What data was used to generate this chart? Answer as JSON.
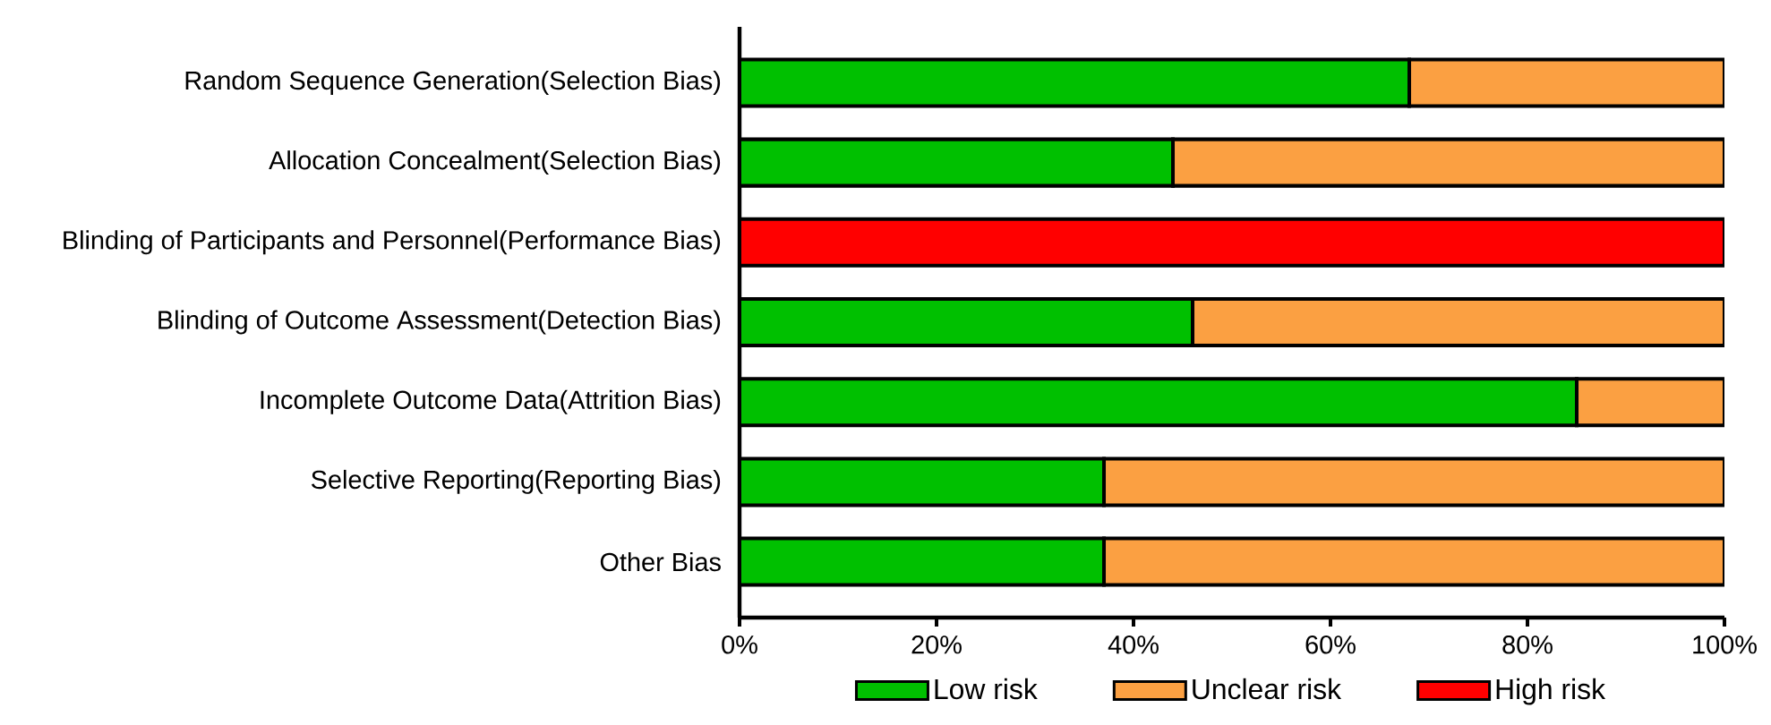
{
  "chart_data": {
    "type": "bar",
    "orientation": "horizontal",
    "stacked": true,
    "categories": [
      "Random Sequence Generation(Selection Bias)",
      "Allocation Concealment(Selection Bias)",
      "Blinding of Participants and Personnel(Performance Bias)",
      "Blinding of Outcome Assessment(Detection Bias)",
      "Incomplete Outcome Data(Attrition Bias)",
      "Selective Reporting(Reporting Bias)",
      "Other Bias"
    ],
    "series": [
      {
        "name": "Low risk",
        "color": "#00c000",
        "values": [
          68,
          44,
          0,
          46,
          85,
          37,
          37
        ]
      },
      {
        "name": "Unclear risk",
        "color": "#fba042",
        "values": [
          32,
          56,
          0,
          54,
          15,
          63,
          63
        ]
      },
      {
        "name": "High risk",
        "color": "#ff0000",
        "values": [
          0,
          0,
          100,
          0,
          0,
          0,
          0
        ]
      }
    ],
    "xlim": [
      0,
      100
    ],
    "xticks": [
      {
        "value": 0,
        "label": "0%"
      },
      {
        "value": 20,
        "label": "20%"
      },
      {
        "value": 40,
        "label": "40%"
      },
      {
        "value": 60,
        "label": "60%"
      },
      {
        "value": 80,
        "label": "80%"
      },
      {
        "value": 100,
        "label": "100%"
      }
    ],
    "legend": "bottom",
    "grid": false
  }
}
